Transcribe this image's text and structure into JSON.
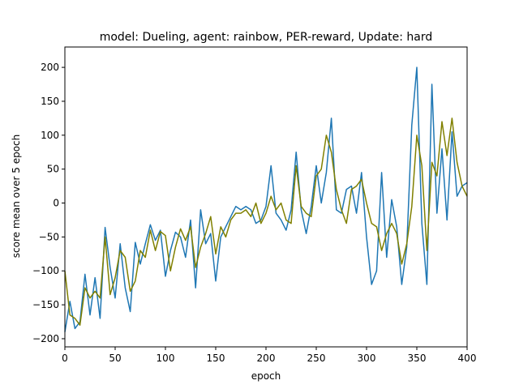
{
  "chart_data": {
    "type": "line",
    "title": "model: Dueling, agent: rainbow, PER-reward, Update: hard",
    "xlabel": "epoch",
    "ylabel": "score mean over 5 epoch",
    "xlim": [
      0,
      400
    ],
    "ylim": [
      -212,
      230
    ],
    "xticks": [
      0,
      50,
      100,
      150,
      200,
      250,
      300,
      350,
      400
    ],
    "yticks": [
      -200,
      -150,
      -100,
      -50,
      0,
      50,
      100,
      150,
      200
    ],
    "grid": false,
    "legend": "none",
    "series": [
      {
        "color": "#1f77b4",
        "x": [
          0,
          5,
          10,
          15,
          20,
          25,
          30,
          35,
          40,
          45,
          50,
          55,
          60,
          65,
          70,
          75,
          80,
          85,
          90,
          95,
          100,
          105,
          110,
          115,
          120,
          125,
          130,
          135,
          140,
          145,
          150,
          155,
          160,
          165,
          170,
          175,
          180,
          185,
          190,
          195,
          200,
          205,
          210,
          215,
          220,
          225,
          230,
          235,
          240,
          245,
          250,
          255,
          260,
          265,
          270,
          275,
          280,
          285,
          290,
          295,
          300,
          305,
          310,
          315,
          320,
          325,
          330,
          335,
          340,
          345,
          350,
          355,
          360,
          365,
          370,
          375,
          380,
          385,
          390,
          395,
          400
        ],
        "values": [
          -190,
          -145,
          -185,
          -175,
          -105,
          -165,
          -110,
          -170,
          -36,
          -95,
          -140,
          -60,
          -125,
          -160,
          -58,
          -90,
          -60,
          -32,
          -55,
          -40,
          -108,
          -70,
          -43,
          -50,
          -80,
          -25,
          -125,
          -10,
          -60,
          -45,
          -115,
          -50,
          -35,
          -20,
          -5,
          -10,
          -5,
          -10,
          -30,
          -25,
          -5,
          55,
          -15,
          -25,
          -40,
          -10,
          75,
          -10,
          -45,
          -5,
          55,
          0,
          45,
          125,
          -10,
          -15,
          20,
          25,
          -15,
          45,
          -50,
          -120,
          -100,
          45,
          -80,
          5,
          -35,
          -120,
          -65,
          115,
          200,
          -30,
          -120,
          175,
          -15,
          80,
          -25,
          105,
          10,
          25,
          30
        ]
      },
      {
        "color": "#808000",
        "x": [
          0,
          5,
          10,
          15,
          20,
          25,
          30,
          35,
          40,
          45,
          50,
          55,
          60,
          65,
          70,
          75,
          80,
          85,
          90,
          95,
          100,
          105,
          110,
          115,
          120,
          125,
          130,
          135,
          140,
          145,
          150,
          155,
          160,
          165,
          170,
          175,
          180,
          185,
          190,
          195,
          200,
          205,
          210,
          215,
          220,
          225,
          230,
          235,
          240,
          245,
          250,
          255,
          260,
          265,
          270,
          275,
          280,
          285,
          290,
          295,
          300,
          305,
          310,
          315,
          320,
          325,
          330,
          335,
          340,
          345,
          350,
          355,
          360,
          365,
          370,
          375,
          380,
          385,
          390,
          395,
          400
        ],
        "values": [
          -100,
          -165,
          -170,
          -180,
          -125,
          -140,
          -130,
          -140,
          -50,
          -135,
          -110,
          -70,
          -80,
          -130,
          -115,
          -70,
          -80,
          -40,
          -70,
          -42,
          -48,
          -100,
          -65,
          -38,
          -55,
          -35,
          -95,
          -65,
          -45,
          -20,
          -75,
          -35,
          -50,
          -25,
          -15,
          -15,
          -10,
          -20,
          0,
          -30,
          -15,
          10,
          -10,
          0,
          -25,
          -30,
          55,
          -5,
          -15,
          -20,
          40,
          50,
          100,
          75,
          20,
          -10,
          -30,
          20,
          25,
          35,
          0,
          -30,
          -35,
          -70,
          -45,
          -30,
          -45,
          -90,
          -60,
          -5,
          100,
          55,
          -70,
          60,
          40,
          120,
          70,
          125,
          60,
          25,
          10
        ]
      }
    ]
  }
}
